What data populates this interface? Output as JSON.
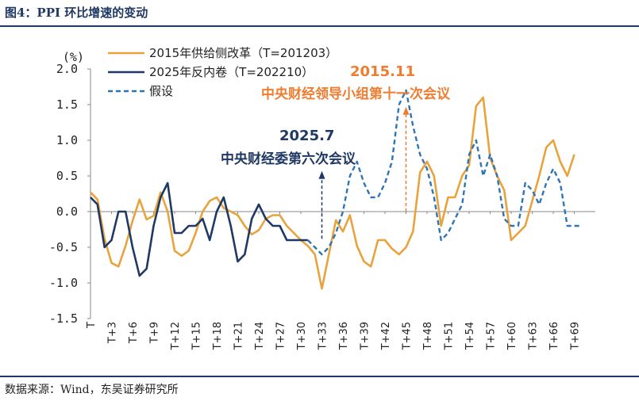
{
  "header": {
    "title": "图4：PPI 环比增速的变动"
  },
  "footer": {
    "source": "数据来源：Wind，东吴证券研究所"
  },
  "colors": {
    "series_2015": "#e8a33d",
    "series_2025": "#1f3864",
    "series_hyp": "#2e75b6",
    "anno_2015": "#ed7d31",
    "anno_2025": "#1f3864",
    "rule": "#1f3864"
  },
  "chart_data": {
    "type": "line",
    "unit_label": "(%)",
    "ylim": [
      -1.5,
      2.0
    ],
    "yticks": [
      2.0,
      1.5,
      1.0,
      0.5,
      0.0,
      -0.5,
      -1.0,
      -1.5
    ],
    "ytick_labels": [
      "2.0",
      "1.5",
      "1.0",
      "0.5",
      "0.0",
      "-0.5",
      "-1.0",
      "-1.5"
    ],
    "xlim": [
      0,
      72
    ],
    "xticks": [
      0,
      3,
      6,
      9,
      12,
      15,
      18,
      21,
      24,
      27,
      30,
      33,
      36,
      39,
      42,
      45,
      48,
      51,
      54,
      57,
      60,
      63,
      66,
      69
    ],
    "xtick_labels": [
      "T",
      "T+3",
      "T+6",
      "T+9",
      "T+12",
      "T+15",
      "T+18",
      "T+21",
      "T+24",
      "T+27",
      "T+30",
      "T+33",
      "T+36",
      "T+39",
      "T+42",
      "T+45",
      "T+48",
      "T+51",
      "T+54",
      "T+57",
      "T+60",
      "T+63",
      "T+66",
      "T+69"
    ],
    "legend_position": "top-left",
    "series": [
      {
        "name": "2015年供给侧改革（T=201203）",
        "style": "solid",
        "x": [
          0,
          1,
          2,
          3,
          4,
          5,
          6,
          7,
          8,
          9,
          10,
          11,
          12,
          13,
          14,
          15,
          16,
          17,
          18,
          19,
          20,
          21,
          22,
          23,
          24,
          25,
          26,
          27,
          28,
          29,
          30,
          31,
          32,
          33,
          34,
          35,
          36,
          37,
          38,
          39,
          40,
          41,
          42,
          43,
          44,
          45,
          46,
          47,
          48,
          49,
          50,
          51,
          52,
          53,
          54,
          55,
          56,
          57,
          58,
          59,
          60,
          61,
          62,
          63,
          64,
          65,
          66,
          67,
          68,
          69
        ],
        "y": [
          0.27,
          0.17,
          -0.38,
          -0.72,
          -0.77,
          -0.48,
          -0.13,
          0.17,
          -0.11,
          -0.06,
          0.27,
          0.0,
          -0.55,
          -0.62,
          -0.55,
          -0.3,
          0.0,
          0.15,
          0.2,
          0.05,
          0.0,
          -0.05,
          -0.2,
          -0.32,
          -0.26,
          -0.1,
          -0.05,
          -0.05,
          -0.2,
          -0.3,
          -0.4,
          -0.48,
          -0.6,
          -1.08,
          -0.6,
          -0.12,
          -0.28,
          -0.05,
          -0.48,
          -0.7,
          -0.77,
          -0.4,
          -0.4,
          -0.52,
          -0.6,
          -0.5,
          -0.28,
          0.55,
          0.7,
          0.5,
          -0.2,
          0.2,
          0.2,
          0.5,
          0.65,
          1.48,
          1.6,
          0.75,
          0.5,
          0.3,
          -0.4,
          -0.3,
          -0.2,
          0.15,
          0.5,
          0.9,
          1.0,
          0.7,
          0.5,
          0.8
        ]
      },
      {
        "name": "2025年反内卷（T=202210）",
        "style": "solid",
        "x": [
          0,
          1,
          2,
          3,
          4,
          5,
          6,
          7,
          8,
          9,
          10,
          11,
          12,
          13,
          14,
          15,
          16,
          17,
          18,
          19,
          20,
          21,
          22,
          23,
          24,
          25,
          26,
          27,
          28,
          29,
          30,
          31
        ],
        "y": [
          0.2,
          0.1,
          -0.5,
          -0.4,
          0.0,
          0.0,
          -0.5,
          -0.9,
          -0.8,
          -0.2,
          0.2,
          0.4,
          -0.3,
          -0.3,
          -0.2,
          -0.2,
          -0.1,
          -0.4,
          0.0,
          0.2,
          -0.2,
          -0.7,
          -0.6,
          -0.1,
          0.1,
          -0.1,
          -0.2,
          -0.2,
          -0.4,
          -0.4,
          -0.4,
          -0.4
        ]
      },
      {
        "name": "假设",
        "style": "dashed",
        "x": [
          31,
          32,
          33,
          34,
          35,
          36,
          37,
          38,
          39,
          40,
          41,
          42,
          43,
          44,
          45,
          46,
          47,
          48,
          49,
          50,
          51,
          52,
          53,
          54,
          55,
          56,
          57,
          58,
          59,
          60,
          61,
          62,
          63,
          64,
          65,
          66,
          67,
          68,
          69,
          70
        ],
        "y": [
          -0.4,
          -0.5,
          -0.6,
          -0.5,
          -0.3,
          0.0,
          0.5,
          0.7,
          0.4,
          0.2,
          0.2,
          0.4,
          0.7,
          1.5,
          1.7,
          1.2,
          0.8,
          0.6,
          0.2,
          -0.4,
          -0.3,
          -0.1,
          0.1,
          0.8,
          1.0,
          0.5,
          0.8,
          0.5,
          -0.1,
          -0.2,
          -0.2,
          0.4,
          0.3,
          0.1,
          0.4,
          0.6,
          0.4,
          -0.2,
          -0.2,
          -0.2
        ]
      }
    ],
    "annotations": [
      {
        "label_top": "2015.11",
        "label_bottom": "中央财经领导小组第十一次会议",
        "x": 45
      },
      {
        "label_top": "2025.7",
        "label_bottom": "中央财经委第六次会议",
        "x": 33
      }
    ]
  }
}
